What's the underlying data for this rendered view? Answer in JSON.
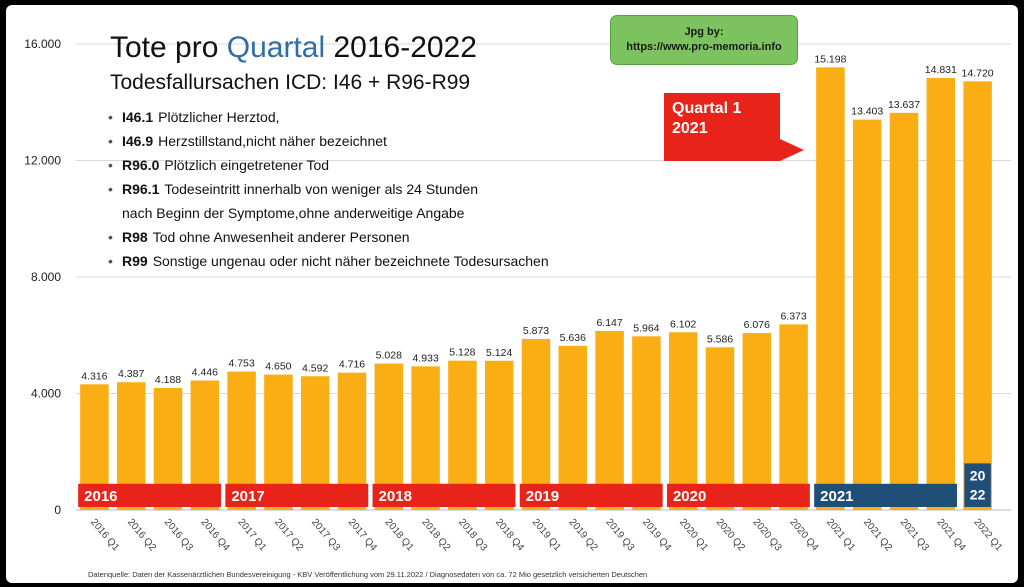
{
  "title": {
    "prefix": "Tote pro ",
    "accent": "Quartal",
    "suffix": " 2016-2022",
    "subtitle": "Todesfallursachen ICD: I46 + R96-R99"
  },
  "bullets": [
    {
      "code": "I46.1",
      "text": "Plötzlicher Herztod,",
      "cont": ""
    },
    {
      "code": "I46.9",
      "text": "Herzstillstand,nicht näher bezeichnet",
      "cont": ""
    },
    {
      "code": "R96.0",
      "text": "Plötzlich eingetretener Tod",
      "cont": ""
    },
    {
      "code": "R96.1",
      "text": "Todeseintritt innerhalb von weniger als 24 Stunden",
      "cont": "nach Beginn der Symptome,ohne anderweitige Angabe"
    },
    {
      "code": "R98",
      "text": "Tod ohne Anwesenheit anderer Personen",
      "cont": ""
    },
    {
      "code": "R99",
      "text": "Sonstige ungenau oder nicht näher bezeichnete Todesursachen",
      "cont": ""
    }
  ],
  "watermark": {
    "line1": "Jpg by:",
    "line2": "https://www.pro-memoria.info"
  },
  "callout": {
    "line1": "Quartal 1",
    "line2": "2021",
    "color": "#e8241a"
  },
  "footnote": "Datenquelle: Daten der Kassenärztlichen Bundesvereinigung - KBV Veröffentlichung vom 29.11.2022 / Diagnosedaten von ca. 72 Mio gesetzlich versicherten Deutschen",
  "colors": {
    "bar": "#fbad14",
    "year_band_red": "#e8241a",
    "year_band_blue": "#1f4e79",
    "grid": "#d9d9d9"
  },
  "chart_data": {
    "type": "bar",
    "title": "Tote pro Quartal 2016-2022",
    "xlabel": "",
    "ylabel": "",
    "ylim": [
      0,
      16000
    ],
    "yticks": [
      0,
      4000,
      8000,
      12000,
      16000
    ],
    "ytick_labels": [
      "0",
      "4.000",
      "8.000",
      "12.000",
      "16.000"
    ],
    "grid": true,
    "categories": [
      "2016 Q1",
      "2016 Q2",
      "2016 Q3",
      "2016 Q4",
      "2017 Q1",
      "2017 Q2",
      "2017 Q3",
      "2017 Q4",
      "2018 Q1",
      "2018 Q2",
      "2018 Q3",
      "2018 Q4",
      "2019 Q1",
      "2019 Q2",
      "2019 Q3",
      "2019 Q4",
      "2020 Q1",
      "2020 Q2",
      "2020 Q3",
      "2020 Q4",
      "2021 Q1",
      "2021 Q2",
      "2021 Q3",
      "2021 Q4",
      "2022 Q1"
    ],
    "values": [
      4316,
      4387,
      4188,
      4446,
      4753,
      4650,
      4592,
      4716,
      5028,
      4933,
      5128,
      5124,
      5873,
      5636,
      6147,
      5964,
      6102,
      5586,
      6076,
      6373,
      15198,
      13403,
      13637,
      14831,
      14720
    ],
    "value_labels": [
      "4.316",
      "4.387",
      "4.188",
      "4.446",
      "4.753",
      "4.650",
      "4.592",
      "4.716",
      "5.028",
      "4.933",
      "5.128",
      "5.124",
      "5.873",
      "5.636",
      "6.147",
      "5.964",
      "6.102",
      "5.586",
      "6.076",
      "6.373",
      "15.198",
      "13.403",
      "13.637",
      "14.831",
      "14.720"
    ],
    "year_bands": [
      {
        "label": "2016",
        "start": 0,
        "count": 4,
        "color": "red"
      },
      {
        "label": "2017",
        "start": 4,
        "count": 4,
        "color": "red"
      },
      {
        "label": "2018",
        "start": 8,
        "count": 4,
        "color": "red"
      },
      {
        "label": "2019",
        "start": 12,
        "count": 4,
        "color": "red"
      },
      {
        "label": "2020",
        "start": 16,
        "count": 4,
        "color": "red"
      },
      {
        "label": "2021",
        "start": 20,
        "count": 4,
        "color": "blue"
      }
    ],
    "year_2022_band": {
      "line1": "20",
      "line2": "22",
      "index": 24,
      "top_value": 1600
    }
  }
}
